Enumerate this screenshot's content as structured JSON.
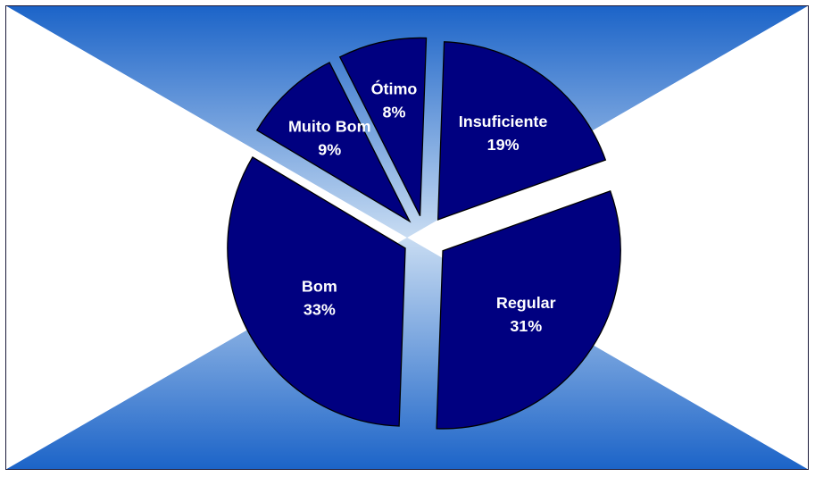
{
  "chart_data": {
    "type": "pie",
    "title": "",
    "categories": [
      "Insuficiente",
      "Regular",
      "Bom",
      "Muito Bom",
      "Ótimo"
    ],
    "values": [
      19,
      31,
      33,
      9,
      8
    ],
    "value_labels": [
      "19%",
      "31%",
      "33%",
      "9%",
      "8%"
    ],
    "exploded": true,
    "legend": "none",
    "colors": {
      "slice_fill": "#000080",
      "slice_stroke": "#000000",
      "label_text": "#ffffff",
      "background_center": "#c8dcf2",
      "background_edge": "#1c64c8"
    }
  }
}
